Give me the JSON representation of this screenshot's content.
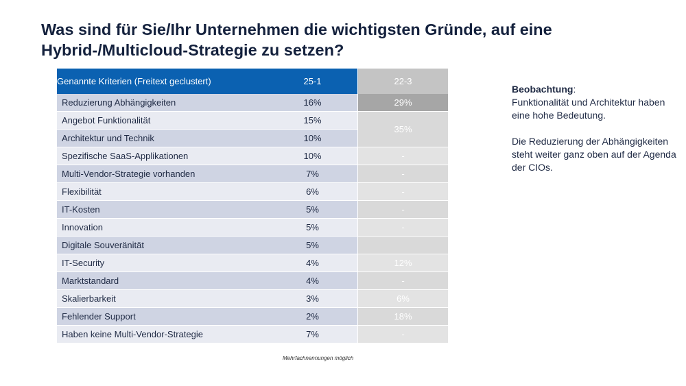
{
  "title": "Was sind für Sie/Ihr Unternehmen die wichtigsten Gründe, auf eine Hybrid-/Multicloud-Strategie zu setzen?",
  "table": {
    "headers": [
      "Genannte Kriterien (Freitext geclustert)",
      "25-1",
      "22-3"
    ],
    "rows": [
      {
        "label": "Reduzierung Abhängigkeiten",
        "v25": "16%",
        "v22": "29%"
      },
      {
        "label": "Angebot Funktionalität",
        "v25": "15%",
        "v22": "35%"
      },
      {
        "label": "Architektur und Technik",
        "v25": "10%",
        "v22": ""
      },
      {
        "label": "Spezifische SaaS-Applikationen",
        "v25": "10%",
        "v22": "-"
      },
      {
        "label": "Multi-Vendor-Strategie vorhanden",
        "v25": "7%",
        "v22": "-"
      },
      {
        "label": "Flexibilität",
        "v25": "6%",
        "v22": "-"
      },
      {
        "label": "IT-Kosten",
        "v25": "5%",
        "v22": "-"
      },
      {
        "label": "Innovation",
        "v25": "5%",
        "v22": "-"
      },
      {
        "label": "Digitale Souveränität",
        "v25": "5%",
        "v22": ""
      },
      {
        "label": "IT-Security",
        "v25": "4%",
        "v22": "12%"
      },
      {
        "label": "Marktstandard",
        "v25": "4%",
        "v22": "-"
      },
      {
        "label": "Skalierbarkeit",
        "v25": "3%",
        "v22": "6%"
      },
      {
        "label": "Fehlender Support",
        "v25": "2%",
        "v22": "18%"
      },
      {
        "label": "Haben keine Multi-Vendor-Strategie",
        "v25": "7%",
        "v22": "-"
      }
    ]
  },
  "footnote": "Mehrfachnennungen möglich",
  "observation": {
    "heading": "Beobachtung",
    "line1": "Funktionalität und Architektur haben eine hohe Bedeutung.",
    "line2": "Die Reduzierung der Abhängigkeiten steht weiter ganz oben auf der Agenda der CIOs."
  },
  "colors": {
    "header_blue": "#0b61b1",
    "header_grey": "#c4c4c4",
    "row_dark": "#cfd4e3",
    "row_light": "#e9ebf2",
    "title": "#14213d"
  }
}
